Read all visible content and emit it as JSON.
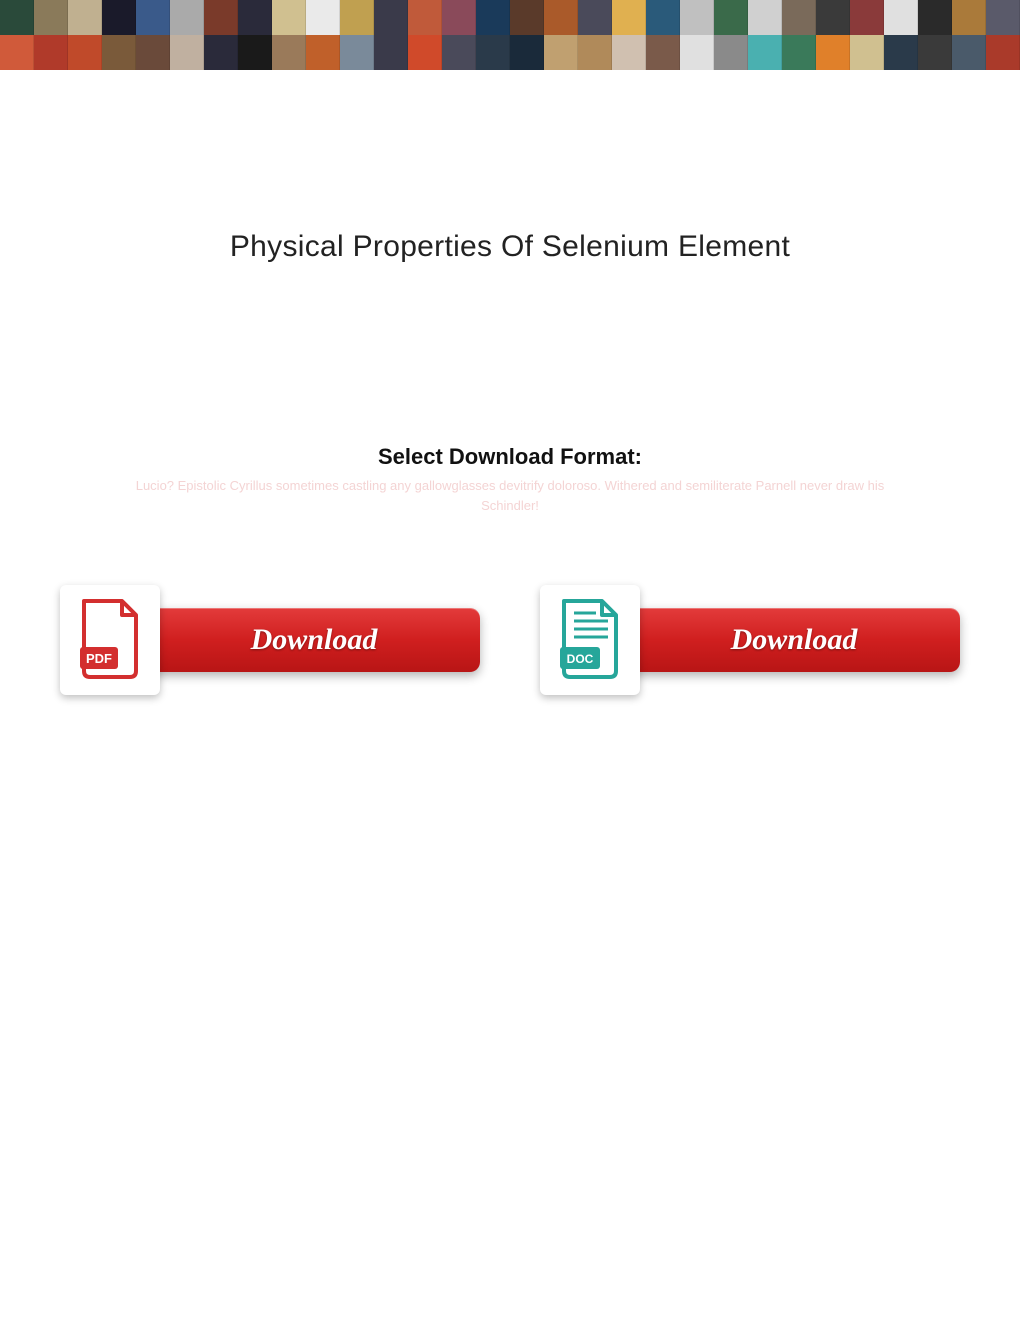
{
  "banner": {
    "row1_colors": [
      "#2a4a3a",
      "#8a7a5a",
      "#c0b090",
      "#1a1a2a",
      "#3a5a8a",
      "#aaaaaa",
      "#7a3a2a",
      "#2a2a3a",
      "#d0c090",
      "#eaeaea",
      "#c0a050",
      "#3a3a4a",
      "#c05a3a",
      "#8a4a5a",
      "#1a3a5a",
      "#5a3a2a",
      "#aa5a2a",
      "#4a4a5a",
      "#e0b050",
      "#2a5a7a",
      "#c0c0c0",
      "#3a6a4a",
      "#d0d0d0",
      "#7a6a5a",
      "#3a3a3a",
      "#8a3a3a",
      "#e0e0e0",
      "#2a2a2a",
      "#aa7a3a",
      "#5a5a6a"
    ],
    "row2_colors": [
      "#d05a3a",
      "#b03a2a",
      "#c04a2a",
      "#7a5a3a",
      "#6a4a3a",
      "#c0b0a0",
      "#2a2a3a",
      "#1a1a1a",
      "#9a7a5a",
      "#c0602a",
      "#7a8a9a",
      "#3a3a4a",
      "#d04a2a",
      "#4a4a5a",
      "#2a3a4a",
      "#1a2a3a",
      "#c0a070",
      "#b08a5a",
      "#d0c0b0",
      "#7a5a4a",
      "#e0e0e0",
      "#8a8a8a",
      "#4ab0b0",
      "#3a7a5a",
      "#e0802a",
      "#d0c090",
      "#2a3a4a",
      "#3a3a3a",
      "#4a5a6a",
      "#aa3a2a"
    ]
  },
  "title": "Physical Properties Of Selenium Element",
  "subtitle": "Select Download Format:",
  "watermark_text": "Lucio? Epistolic Cyrillus sometimes castling any gallowglasses devitrify doloroso. Withered and\nsemiliterate Parnell never draw his Schindler!",
  "downloads": {
    "pdf": {
      "label": "Download",
      "format": "PDF",
      "icon_color": "#d32f2f"
    },
    "doc": {
      "label": "Download",
      "format": "DOC",
      "icon_color": "#26a69a"
    }
  },
  "colors": {
    "button_bg_top": "#e33b3b",
    "button_bg_bottom": "#b81515",
    "text_title": "#222222",
    "text_subtitle": "#111111",
    "watermark": "#f4d4d4",
    "background": "#ffffff"
  },
  "typography": {
    "title_size": 30,
    "subtitle_size": 22,
    "button_size": 30,
    "watermark_size": 13
  }
}
